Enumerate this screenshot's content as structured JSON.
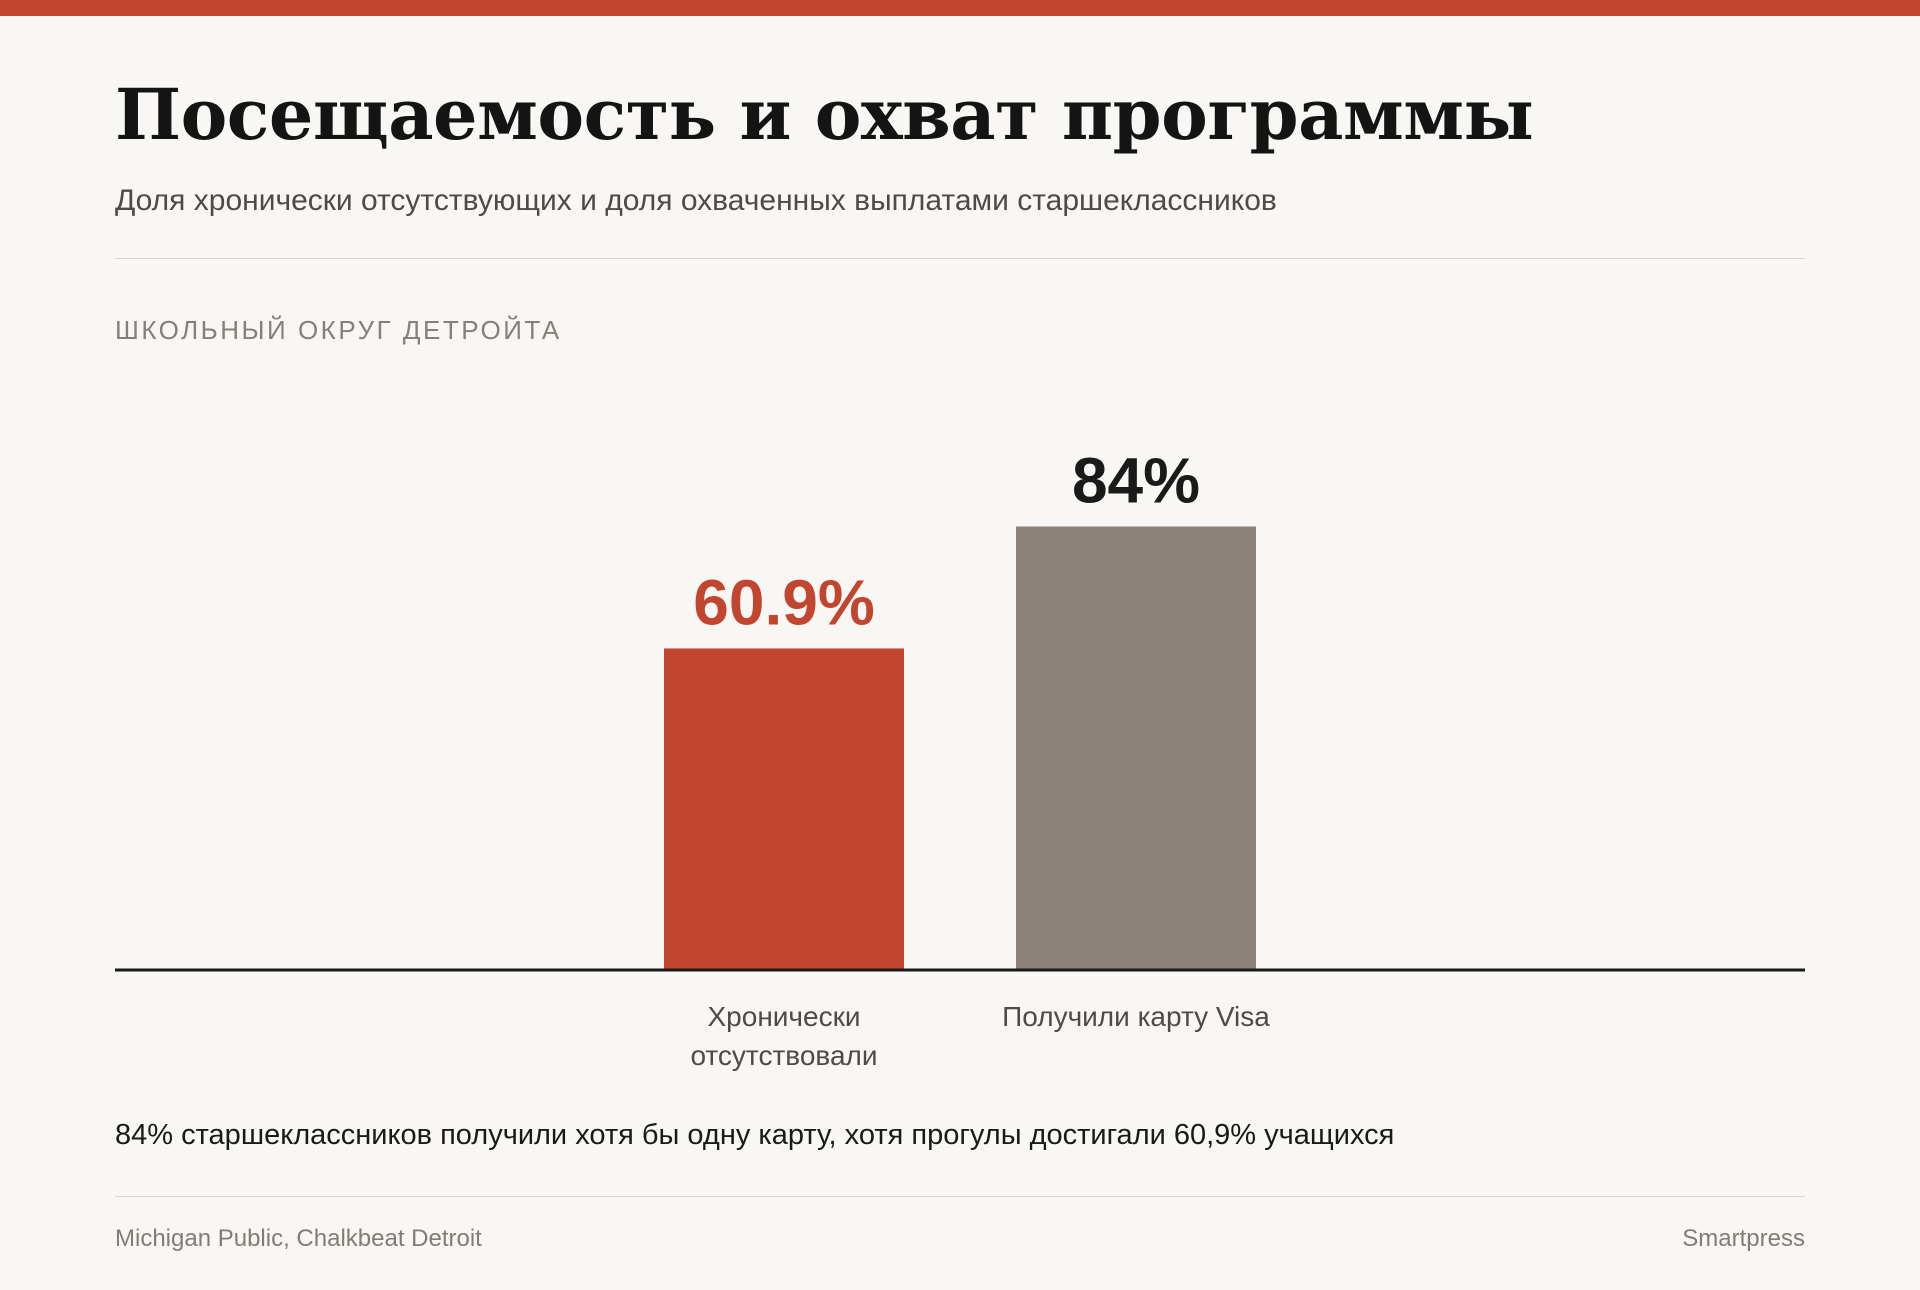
{
  "header": {
    "title": "Посещаемость и охват программы",
    "subtitle": "Доля хронически отсутствующих и доля охваченных выплатами старшеклассников"
  },
  "group_label": "ШКОЛЬНЫЙ ОКРУГ ДЕТРОЙТА",
  "chart_data": {
    "type": "bar",
    "title": "Посещаемость и охват программы",
    "subtitle": "Доля хронически отсутствующих и доля охваченных выплатами старшеклассников",
    "categories": [
      [
        "Хронически",
        "отсутствовали"
      ],
      [
        "Получили карту Visa"
      ]
    ],
    "values": [
      60.9,
      84
    ],
    "value_labels": [
      "60.9%",
      "84%"
    ],
    "colors": [
      "#c1452f",
      "#8b8279"
    ],
    "label_colors": [
      "#c1452f",
      "#1a1a1a"
    ],
    "ylim": [
      0,
      100
    ],
    "unit": "%",
    "grid": false,
    "legend": "none"
  },
  "note": "84% старшеклассников получили хотя бы одну карту, хотя прогулы достигали 60,9% учащихся",
  "footer": {
    "source": "Michigan Public, Chalkbeat Detroit",
    "brand": "Smartpress"
  },
  "colors": {
    "accent": "#c1452f",
    "neutral_bar": "#8b8279",
    "background": "#f9f7f3"
  }
}
